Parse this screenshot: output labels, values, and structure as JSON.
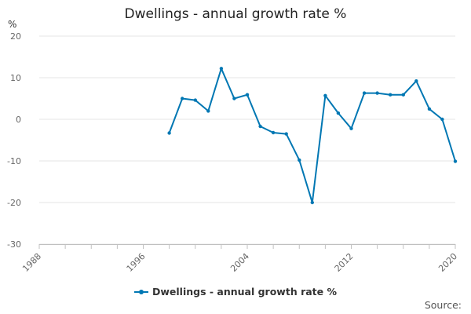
{
  "chart_data": {
    "type": "line",
    "title": "Dwellings - annual growth rate %",
    "ylabel": "%",
    "xlabel": "",
    "ylim": [
      -30,
      20
    ],
    "yticks": [
      20,
      10,
      0,
      -10,
      -20,
      -30
    ],
    "xlim": [
      1988,
      2020
    ],
    "xticks": [
      "1988",
      "1996",
      "2004",
      "2012",
      "2020"
    ],
    "grid": true,
    "legend_position": "bottom",
    "source_label": "Source:",
    "series": [
      {
        "name": "Dwellings - annual growth rate %",
        "color": "#0077b3",
        "x": [
          1998,
          1999,
          2000,
          2001,
          2002,
          2003,
          2004,
          2005,
          2006,
          2007,
          2008,
          2009,
          2010,
          2011,
          2012,
          2013,
          2014,
          2015,
          2016,
          2017,
          2018,
          2019,
          2020
        ],
        "values": [
          -3.3,
          5.0,
          4.6,
          2.0,
          12.2,
          5.0,
          5.9,
          -1.7,
          -3.2,
          -3.5,
          -9.8,
          -20.0,
          5.7,
          1.5,
          -2.2,
          6.3,
          6.3,
          5.9,
          5.9,
          9.2,
          2.5,
          0.0,
          -10.1
        ]
      }
    ]
  }
}
